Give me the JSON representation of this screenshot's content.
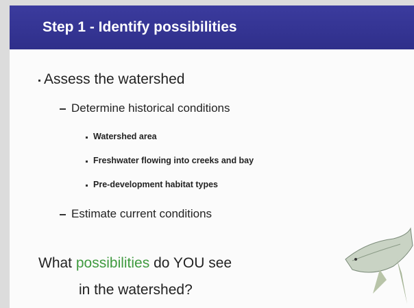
{
  "header": {
    "title": "Step 1 - Identify possibilities"
  },
  "bullets": [
    {
      "level": 1,
      "text": "Assess the watershed"
    },
    {
      "level": 2,
      "text": "Determine historical conditions"
    },
    {
      "level": 3,
      "text": "Watershed area"
    },
    {
      "level": 3,
      "text": "Freshwater flowing into creeks and bay"
    },
    {
      "level": 3,
      "text": "Pre-development habitat types"
    },
    {
      "level": 2,
      "text": "Estimate current conditions"
    }
  ],
  "question": {
    "before": "What",
    "highlight": "possibilities",
    "after": "do YOU see",
    "line2": "in the watershed?"
  }
}
